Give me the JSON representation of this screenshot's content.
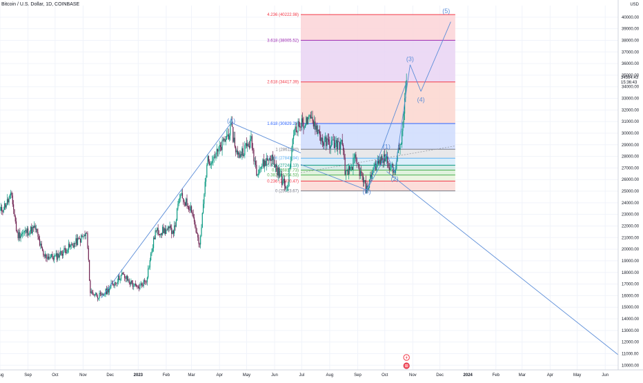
{
  "header": {
    "symbol_title": "Bitcoin / U.S. Dollar, 1D, COINBASE",
    "currency": "USD"
  },
  "last_price": {
    "value": "34564.43",
    "countdown": "15:36:43"
  },
  "chart_data": {
    "type": "candlestick",
    "title": "Bitcoin / U.S. Dollar, 1D, COINBASE",
    "y_axis_unit": "USD",
    "ylim": [
      9600,
      41000
    ],
    "y_ticks": [
      10000,
      11000,
      12000,
      13000,
      14000,
      15000,
      16000,
      17000,
      18000,
      19000,
      20000,
      21000,
      22000,
      23000,
      24000,
      25000,
      26000,
      27000,
      28000,
      29000,
      30000,
      31000,
      32000,
      33000,
      34000,
      35000,
      36000,
      37000,
      38000,
      39000,
      40000
    ],
    "y_tick_labels": [
      "10000.00",
      "11000.00",
      "12000.00",
      "13000.00",
      "14000.00",
      "15000.00",
      "16000.00",
      "17000.00",
      "18000.00",
      "19000.00",
      "20000.00",
      "21000.00",
      "22000.00",
      "23000.00",
      "24000.00",
      "25000.00",
      "26000.00",
      "27000.00",
      "28000.00",
      "29000.00",
      "30000.00",
      "31000.00",
      "32000.00",
      "33000.00",
      "34000.00",
      "35000.00",
      "36000.00",
      "37000.00",
      "38000.00",
      "39000.00",
      "40000.00"
    ],
    "x_axis": {
      "start_date": "2022-08-01",
      "end_date": "2024-06-30",
      "tick_labels": [
        {
          "date": "2022-08-01",
          "label": "Aug"
        },
        {
          "date": "2022-09-01",
          "label": "Sep"
        },
        {
          "date": "2022-10-01",
          "label": "Oct"
        },
        {
          "date": "2022-11-01",
          "label": "Nov"
        },
        {
          "date": "2022-12-01",
          "label": "Dec"
        },
        {
          "date": "2023-01-01",
          "label": "2023"
        },
        {
          "date": "2023-02-01",
          "label": "Feb"
        },
        {
          "date": "2023-03-01",
          "label": "Mar"
        },
        {
          "date": "2023-04-01",
          "label": "Apr"
        },
        {
          "date": "2023-05-01",
          "label": "May"
        },
        {
          "date": "2023-06-01",
          "label": "Jun"
        },
        {
          "date": "2023-07-01",
          "label": "Jul"
        },
        {
          "date": "2023-08-01",
          "label": "Aug"
        },
        {
          "date": "2023-09-01",
          "label": "Sep"
        },
        {
          "date": "2023-10-01",
          "label": "Oct"
        },
        {
          "date": "2023-11-01",
          "label": "Nov"
        },
        {
          "date": "2023-12-01",
          "label": "Dec"
        },
        {
          "date": "2024-01-01",
          "label": "2024"
        },
        {
          "date": "2024-02-01",
          "label": "Feb"
        },
        {
          "date": "2024-03-01",
          "label": "Mar"
        },
        {
          "date": "2024-04-01",
          "label": "Apr"
        },
        {
          "date": "2024-05-01",
          "label": "May"
        },
        {
          "date": "2024-06-01",
          "label": "Jun"
        }
      ]
    },
    "price_path": [
      {
        "date": "2022-08-01",
        "price": 23200
      },
      {
        "date": "2022-08-14",
        "price": 24600
      },
      {
        "date": "2022-08-20",
        "price": 21200
      },
      {
        "date": "2022-09-09",
        "price": 21800
      },
      {
        "date": "2022-09-18",
        "price": 19400
      },
      {
        "date": "2022-10-01",
        "price": 19300
      },
      {
        "date": "2022-10-26",
        "price": 20700
      },
      {
        "date": "2022-11-05",
        "price": 21300
      },
      {
        "date": "2022-11-09",
        "price": 16300
      },
      {
        "date": "2022-11-21",
        "price": 15900
      },
      {
        "date": "2022-12-14",
        "price": 17800
      },
      {
        "date": "2022-12-31",
        "price": 16600
      },
      {
        "date": "2023-01-10",
        "price": 17400
      },
      {
        "date": "2023-01-20",
        "price": 21500
      },
      {
        "date": "2023-02-10",
        "price": 21700
      },
      {
        "date": "2023-02-16",
        "price": 24600
      },
      {
        "date": "2023-03-01",
        "price": 23500
      },
      {
        "date": "2023-03-10",
        "price": 20100
      },
      {
        "date": "2023-03-18",
        "price": 27500
      },
      {
        "date": "2023-03-31",
        "price": 28400
      },
      {
        "date": "2023-04-14",
        "price": 30400
      },
      {
        "date": "2023-04-21",
        "price": 28000
      },
      {
        "date": "2023-05-06",
        "price": 29300
      },
      {
        "date": "2023-05-12",
        "price": 26800
      },
      {
        "date": "2023-05-28",
        "price": 28000
      },
      {
        "date": "2023-06-10",
        "price": 25800
      },
      {
        "date": "2023-06-15",
        "price": 25200
      },
      {
        "date": "2023-06-23",
        "price": 30500
      },
      {
        "date": "2023-07-13",
        "price": 31200
      },
      {
        "date": "2023-07-25",
        "price": 29200
      },
      {
        "date": "2023-08-16",
        "price": 29000
      },
      {
        "date": "2023-08-18",
        "price": 26200
      },
      {
        "date": "2023-08-29",
        "price": 27700
      },
      {
        "date": "2023-09-11",
        "price": 25100
      },
      {
        "date": "2023-09-19",
        "price": 27100
      },
      {
        "date": "2023-10-02",
        "price": 27900
      },
      {
        "date": "2023-10-11",
        "price": 26600
      },
      {
        "date": "2023-10-20",
        "price": 29700
      },
      {
        "date": "2023-10-24",
        "price": 34000
      },
      {
        "date": "2023-10-25",
        "price": 34564.43
      }
    ],
    "fibonacci": {
      "x_start": "2023-06-30",
      "x_end": "2023-12-18",
      "levels": [
        {
          "ratio": "4.236",
          "price": 40222.98,
          "label": "4.236 (40222.98)",
          "color": "#f23645",
          "fill": "#fbd3d7"
        },
        {
          "ratio": "3.618",
          "price": 38005.52,
          "label": "3.618 (38005.52)",
          "color": "#9c27b0",
          "fill": "#e9d4f3"
        },
        {
          "ratio": "2.618",
          "price": 34417.39,
          "label": "2.618 (34417.39)",
          "color": "#f23645",
          "fill": "#fcd6cf"
        },
        {
          "ratio": "1.618",
          "price": 30829.2,
          "label": "1.618 (30829.20)",
          "color": "#2962ff",
          "fill": "#cfdcfd"
        },
        {
          "ratio": "1",
          "price": 28611.8,
          "label": "1 (28611.80)",
          "color": "#787b86",
          "fill": "#e4e4e6"
        },
        {
          "ratio": "0.786",
          "price": 27843.94,
          "label": "0.786 (27843.94)",
          "color": "#5cb0f3",
          "fill": "#d6ebfa"
        },
        {
          "ratio": "0.618",
          "price": 27241.13,
          "label": "0.618 (27241.13)",
          "color": "#089981",
          "fill": "#cfe9e3"
        },
        {
          "ratio": "0.5",
          "price": 26817.73,
          "label": "0.5 (26817.73)",
          "color": "#4caf50",
          "fill": "#d9eed6"
        },
        {
          "ratio": "0.382",
          "price": 26394.53,
          "label": "0.382 (26394.53)",
          "color": "#4caf50",
          "fill": "#e7f3dc"
        },
        {
          "ratio": "0.236",
          "price": 25870.47,
          "label": "0.236 (25870.47)",
          "color": "#f23645",
          "fill": "#fbd8d3"
        },
        {
          "ratio": "0",
          "price": 25023.67,
          "label": "0 (25023.67)",
          "color": "#787b86",
          "fill": "#fbd8d3"
        }
      ]
    },
    "elliott_waves": [
      {
        "label": "(A)",
        "date": "2023-04-14",
        "price": 30900,
        "color": "#5b8dd8"
      },
      {
        "label": "(B)",
        "date": "2023-09-11",
        "price": 24800,
        "color": "#5b8dd8"
      },
      {
        "label": "(1)",
        "date": "2023-10-03",
        "price": 28650,
        "color": "#5b8dd8"
      },
      {
        "label": "(2)",
        "date": "2023-10-12",
        "price": 25900,
        "color": "#5b8dd8"
      },
      {
        "label": "(3)",
        "date": "2023-10-29",
        "price": 36200,
        "color": "#5b8dd8"
      },
      {
        "label": "(4)",
        "date": "2023-11-10",
        "price": 32700,
        "color": "#5b8dd8"
      },
      {
        "label": "(5)",
        "date": "2023-12-08",
        "price": 40350,
        "color": "#5b8dd8"
      }
    ],
    "wave_lines": [
      {
        "from": {
          "date": "2022-11-21",
          "price": 15800
        },
        "to": {
          "date": "2023-04-14",
          "price": 30900
        }
      },
      {
        "from": {
          "date": "2023-04-14",
          "price": 30900
        },
        "to": {
          "date": "2023-06-30",
          "price": 28300
        }
      },
      {
        "from": {
          "date": "2023-06-30",
          "price": 27300
        },
        "to": {
          "date": "2023-09-11",
          "price": 25100
        }
      },
      {
        "from": {
          "date": "2023-09-11",
          "price": 25100
        },
        "to": {
          "date": "2023-10-25",
          "price": 34400
        }
      },
      {
        "from": {
          "date": "2023-09-11",
          "price": 25100
        },
        "to": {
          "date": "2023-10-03",
          "price": 28200
        }
      },
      {
        "from": {
          "date": "2023-10-03",
          "price": 28200
        },
        "to": {
          "date": "2023-10-12",
          "price": 26600
        }
      },
      {
        "from": {
          "date": "2023-10-12",
          "price": 26600
        },
        "to": {
          "date": "2023-10-29",
          "price": 35900
        }
      },
      {
        "from": {
          "date": "2023-10-29",
          "price": 35900
        },
        "to": {
          "date": "2023-11-10",
          "price": 33600
        }
      },
      {
        "from": {
          "date": "2023-11-10",
          "price": 33600
        },
        "to": {
          "date": "2023-12-13",
          "price": 39600
        }
      },
      {
        "from": {
          "date": "2023-10-03",
          "price": 26700
        },
        "to": {
          "date": "2024-06-30",
          "price": 10000
        }
      }
    ],
    "grid": true,
    "colors": {
      "up": "#089981",
      "down": "#6d1f4f",
      "wave": "#5b8dd8",
      "axis_text": "#131722"
    }
  }
}
